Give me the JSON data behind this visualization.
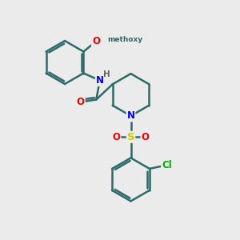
{
  "bg_color": "#ebebeb",
  "bond_color": "#2d6b6b",
  "bond_width": 1.8,
  "atom_colors": {
    "N": "#0000ee",
    "O": "#ee0000",
    "S": "#cccc00",
    "Cl": "#00aa00",
    "H": "#666666",
    "C": "#2d6b6b"
  },
  "font_size": 8.5
}
